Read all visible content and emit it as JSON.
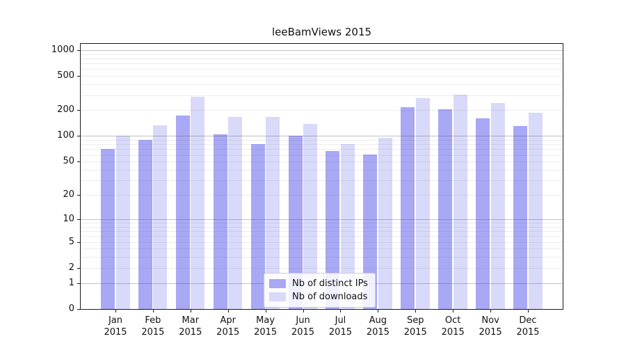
{
  "chart_data": {
    "type": "bar",
    "title": "leeBamViews 2015",
    "xlabel": "",
    "ylabel": "",
    "year": "2015",
    "categories": [
      "Jan",
      "Feb",
      "Mar",
      "Apr",
      "May",
      "Jun",
      "Jul",
      "Aug",
      "Sep",
      "Oct",
      "Nov",
      "Dec"
    ],
    "series": [
      {
        "name": "Nb of distinct IPs",
        "color": "#a8a8f5",
        "values": [
          70,
          90,
          175,
          105,
          80,
          100,
          67,
          61,
          217,
          205,
          161,
          131
        ]
      },
      {
        "name": "Nb of downloads",
        "color": "#d9d9fa",
        "values": [
          100,
          134,
          287,
          167,
          167,
          139,
          81,
          95,
          277,
          303,
          242,
          187
        ]
      }
    ],
    "yticks": [
      0,
      1,
      2,
      5,
      10,
      20,
      50,
      100,
      200,
      500,
      1000
    ],
    "scale": "log1p",
    "ylim": [
      0,
      1180
    ],
    "grid": true,
    "legend_position": "bottom-center"
  }
}
